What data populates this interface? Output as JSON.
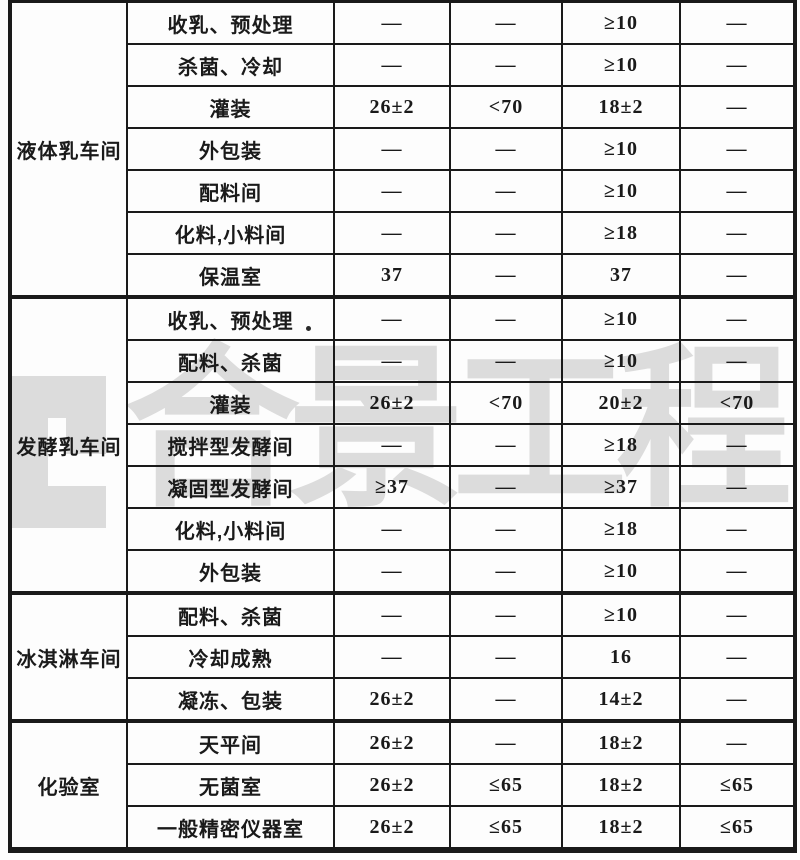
{
  "watermark": {
    "text": "合景工程",
    "logo": "cj-logo",
    "color": "#dcdcdc"
  },
  "table": {
    "border_color": "#1a1a1a",
    "sections": [
      {
        "group": "液体乳车间",
        "rows": [
          {
            "room": "收乳、预处理",
            "values": [
              "—",
              "—",
              "≥10",
              "—"
            ]
          },
          {
            "room": "杀菌、冷却",
            "values": [
              "—",
              "—",
              "≥10",
              "—"
            ]
          },
          {
            "room": "灌装",
            "values": [
              "26±2",
              "<70",
              "18±2",
              "—"
            ]
          },
          {
            "room": "外包装",
            "values": [
              "—",
              "—",
              "≥10",
              "—"
            ]
          },
          {
            "room": "配料间",
            "values": [
              "—",
              "—",
              "≥10",
              "—"
            ]
          },
          {
            "room": "化料,小料间",
            "values": [
              "—",
              "—",
              "≥18",
              "—"
            ]
          },
          {
            "room": "保温室",
            "values": [
              "37",
              "—",
              "37",
              "—"
            ]
          }
        ]
      },
      {
        "group": "发酵乳车间",
        "rows": [
          {
            "room": "收乳、预处理",
            "values": [
              "—",
              "—",
              "≥10",
              "—"
            ]
          },
          {
            "room": "配料、杀菌",
            "values": [
              "—",
              "—",
              "≥10",
              "—"
            ]
          },
          {
            "room": "灌装",
            "values": [
              "26±2",
              "<70",
              "20±2",
              "<70"
            ]
          },
          {
            "room": "搅拌型发酵间",
            "values": [
              "—",
              "—",
              "≥18",
              "—"
            ]
          },
          {
            "room": "凝固型发酵间",
            "values": [
              "≥37",
              "—",
              "≥37",
              "—"
            ]
          },
          {
            "room": "化料,小料间",
            "values": [
              "—",
              "—",
              "≥18",
              "—"
            ]
          },
          {
            "room": "外包装",
            "values": [
              "—",
              "—",
              "≥10",
              "—"
            ]
          }
        ]
      },
      {
        "group": "冰淇淋车间",
        "rows": [
          {
            "room": "配料、杀菌",
            "values": [
              "—",
              "—",
              "≥10",
              "—"
            ]
          },
          {
            "room": "冷却成熟",
            "values": [
              "—",
              "—",
              "16",
              "—"
            ]
          },
          {
            "room": "凝冻、包装",
            "values": [
              "26±2",
              "—",
              "14±2",
              "—"
            ]
          }
        ]
      },
      {
        "group": "化验室",
        "rows": [
          {
            "room": "天平间",
            "values": [
              "26±2",
              "—",
              "18±2",
              "—"
            ]
          },
          {
            "room": "无菌室",
            "values": [
              "26±2",
              "≤65",
              "18±2",
              "≤65"
            ]
          },
          {
            "room": "一般精密仪器室",
            "values": [
              "26±2",
              "≤65",
              "18±2",
              "≤65"
            ]
          }
        ]
      }
    ]
  }
}
